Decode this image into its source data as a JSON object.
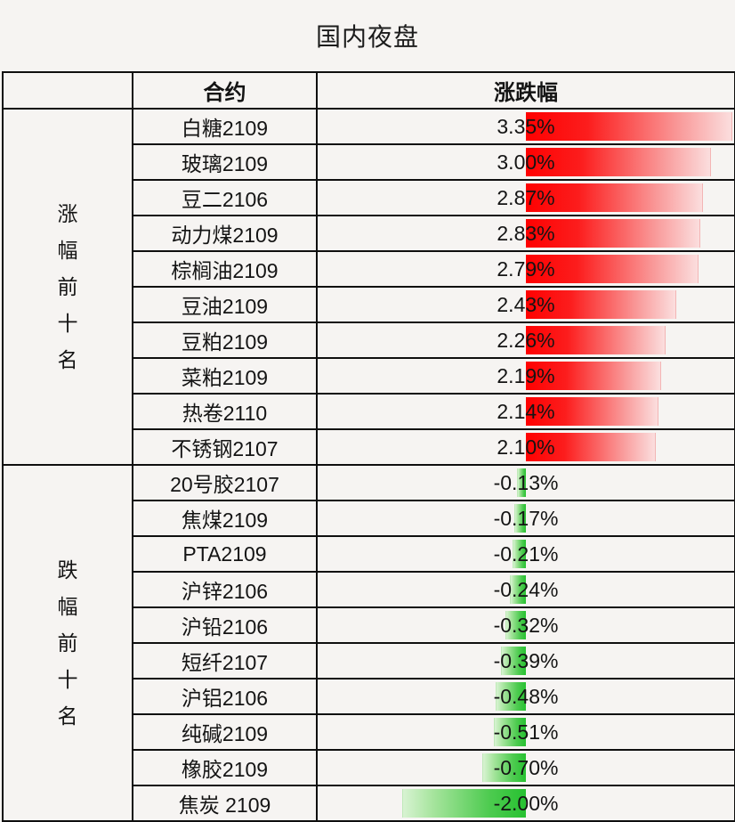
{
  "title": "国内夜盘",
  "table": {
    "headers": {
      "label": "",
      "contract": "合约",
      "change": "涨跌幅"
    },
    "axis_max_abs_pct": 3.39,
    "bar_colors": {
      "positive": "#fe0101",
      "negative": "#27c131"
    },
    "sections": [
      {
        "label": "涨幅前十名",
        "rows": [
          {
            "contract": "白糖2109",
            "change": "3.35%",
            "pct": 3.35
          },
          {
            "contract": "玻璃2109",
            "change": "3.00%",
            "pct": 3.0
          },
          {
            "contract": "豆二2106",
            "change": "2.87%",
            "pct": 2.87
          },
          {
            "contract": "动力煤2109",
            "change": "2.83%",
            "pct": 2.83
          },
          {
            "contract": "棕榈油2109",
            "change": "2.79%",
            "pct": 2.79
          },
          {
            "contract": "豆油2109",
            "change": "2.43%",
            "pct": 2.43
          },
          {
            "contract": "豆粕2109",
            "change": "2.26%",
            "pct": 2.26
          },
          {
            "contract": "菜粕2109",
            "change": "2.19%",
            "pct": 2.19
          },
          {
            "contract": "热卷2110",
            "change": "2.14%",
            "pct": 2.14
          },
          {
            "contract": "不锈钢2107",
            "change": "2.10%",
            "pct": 2.1
          }
        ]
      },
      {
        "label": "跌幅前十名",
        "rows": [
          {
            "contract": "20号胶2107",
            "change": "-0.13%",
            "pct": -0.13
          },
          {
            "contract": "焦煤2109",
            "change": "-0.17%",
            "pct": -0.17
          },
          {
            "contract": "PTA2109",
            "change": "-0.21%",
            "pct": -0.21
          },
          {
            "contract": "沪锌2106",
            "change": "-0.24%",
            "pct": -0.24
          },
          {
            "contract": "沪铅2106",
            "change": "-0.32%",
            "pct": -0.32
          },
          {
            "contract": "短纤2107",
            "change": "-0.39%",
            "pct": -0.39
          },
          {
            "contract": "沪铝2106",
            "change": "-0.48%",
            "pct": -0.48
          },
          {
            "contract": "纯碱2109",
            "change": "-0.51%",
            "pct": -0.51
          },
          {
            "contract": "橡胶2109",
            "change": "-0.70%",
            "pct": -0.7
          },
          {
            "contract": "焦炭 2109",
            "change": "-2.00%",
            "pct": -2.0
          }
        ]
      }
    ]
  },
  "chart_data": {
    "type": "bar",
    "orientation": "horizontal",
    "title": "国内夜盘",
    "xlabel": "",
    "ylabel": "涨跌幅",
    "xlim": [
      -3.39,
      3.39
    ],
    "grid": false,
    "series": [
      {
        "name": "涨幅前十名",
        "categories": [
          "白糖2109",
          "玻璃2109",
          "豆二2106",
          "动力煤2109",
          "棕榈油2109",
          "豆油2109",
          "豆粕2109",
          "菜粕2109",
          "热卷2110",
          "不锈钢2107"
        ],
        "values": [
          3.35,
          3.0,
          2.87,
          2.83,
          2.79,
          2.43,
          2.26,
          2.19,
          2.14,
          2.1
        ],
        "color": "#fe0101"
      },
      {
        "name": "跌幅前十名",
        "categories": [
          "20号胶2107",
          "焦煤2109",
          "PTA2109",
          "沪锌2106",
          "沪铅2106",
          "短纤2107",
          "沪铝2106",
          "纯碱2109",
          "橡胶2109",
          "焦炭 2109"
        ],
        "values": [
          -0.13,
          -0.17,
          -0.21,
          -0.24,
          -0.32,
          -0.39,
          -0.48,
          -0.51,
          -0.7,
          -2.0
        ],
        "color": "#27c131"
      }
    ]
  }
}
